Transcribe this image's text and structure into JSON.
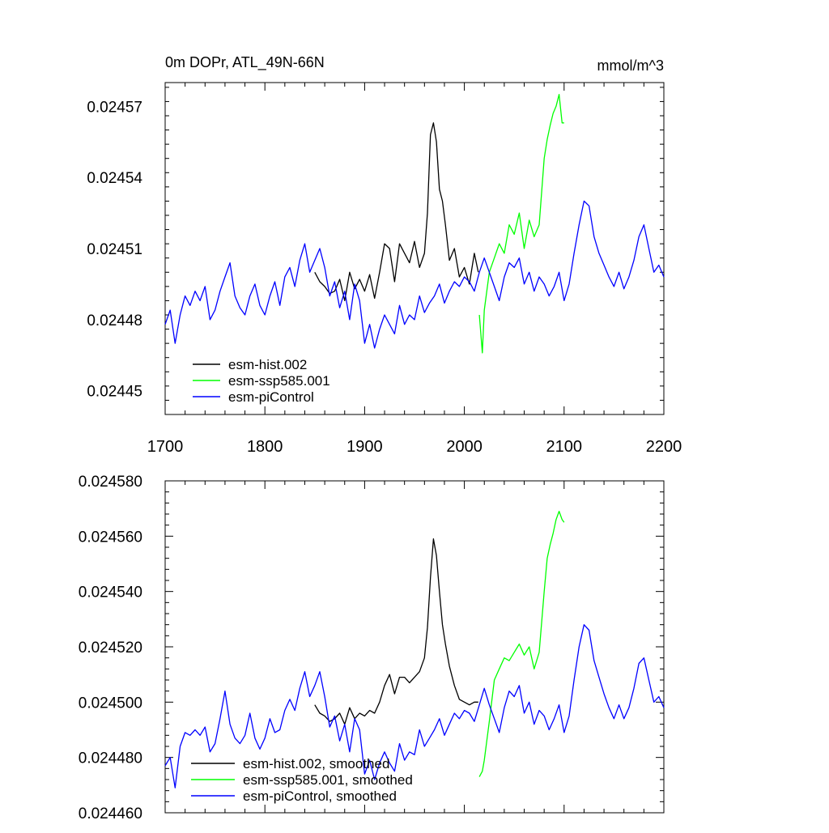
{
  "colors": {
    "hist": "#000000",
    "ssp": "#00ff00",
    "pic": "#0000ff",
    "axis": "#000000",
    "background": "#ffffff"
  },
  "chart_data": [
    {
      "type": "line",
      "title_left": "0m DOPr, ATL_49N-66N",
      "title_right": "mmol/m^3",
      "xlim": [
        1700,
        2200
      ],
      "ylim": [
        0.02444,
        0.02458
      ],
      "xticks": [
        1700,
        1800,
        1900,
        2000,
        2100,
        2200
      ],
      "xtick_labels": [
        "1700",
        "1800",
        "1900",
        "2000",
        "2100",
        "2200"
      ],
      "yticks": [
        0.02445,
        0.02448,
        0.02451,
        0.02454,
        0.02457
      ],
      "ytick_labels": [
        "0.02445",
        "0.02448",
        "0.02451",
        "0.02454",
        "0.02457"
      ],
      "legend": [
        "esm-hist.002",
        "esm-ssp585.001",
        "esm-piControl"
      ],
      "series": [
        {
          "name": "esm-hist.002",
          "color_key": "hist",
          "x": [
            1850,
            1855,
            1860,
            1865,
            1870,
            1875,
            1880,
            1885,
            1890,
            1895,
            1900,
            1905,
            1910,
            1915,
            1920,
            1925,
            1930,
            1935,
            1940,
            1945,
            1950,
            1955,
            1960,
            1963,
            1966,
            1969,
            1972,
            1975,
            1978,
            1981,
            1985,
            1990,
            1995,
            2000,
            2005,
            2010,
            2014
          ],
          "y": [
            0.0245,
            0.024496,
            0.024494,
            0.024491,
            0.024492,
            0.024497,
            0.024488,
            0.0245,
            0.024493,
            0.024497,
            0.024492,
            0.024499,
            0.024489,
            0.0245,
            0.024512,
            0.02451,
            0.024496,
            0.024512,
            0.024508,
            0.024504,
            0.024513,
            0.024502,
            0.024508,
            0.024525,
            0.024558,
            0.024563,
            0.024555,
            0.024535,
            0.02453,
            0.02452,
            0.024505,
            0.02451,
            0.024498,
            0.024502,
            0.024495,
            0.024508,
            0.0245
          ]
        },
        {
          "name": "esm-ssp585.001",
          "color_key": "ssp",
          "x": [
            2015,
            2018,
            2020,
            2025,
            2030,
            2035,
            2040,
            2045,
            2050,
            2055,
            2060,
            2065,
            2070,
            2075,
            2080,
            2083,
            2086,
            2089,
            2092,
            2095,
            2098,
            2100
          ],
          "y": [
            0.024482,
            0.024466,
            0.024484,
            0.0245,
            0.024506,
            0.024512,
            0.024508,
            0.02452,
            0.024516,
            0.024525,
            0.02451,
            0.024522,
            0.024515,
            0.02452,
            0.024548,
            0.024556,
            0.024562,
            0.024567,
            0.02457,
            0.024575,
            0.024563,
            0.024563
          ]
        },
        {
          "name": "esm-piControl",
          "color_key": "pic",
          "x": [
            1700,
            1705,
            1710,
            1715,
            1720,
            1725,
            1730,
            1735,
            1740,
            1745,
            1750,
            1755,
            1760,
            1765,
            1770,
            1775,
            1780,
            1785,
            1790,
            1795,
            1800,
            1805,
            1810,
            1815,
            1820,
            1825,
            1830,
            1835,
            1840,
            1845,
            1850,
            1855,
            1860,
            1865,
            1870,
            1875,
            1880,
            1885,
            1890,
            1895,
            1900,
            1905,
            1910,
            1915,
            1920,
            1925,
            1930,
            1935,
            1940,
            1945,
            1950,
            1955,
            1960,
            1965,
            1970,
            1975,
            1980,
            1985,
            1990,
            1995,
            2000,
            2005,
            2010,
            2015,
            2020,
            2025,
            2030,
            2035,
            2040,
            2045,
            2050,
            2055,
            2060,
            2065,
            2070,
            2075,
            2080,
            2085,
            2090,
            2095,
            2100,
            2105,
            2110,
            2115,
            2120,
            2125,
            2130,
            2135,
            2140,
            2145,
            2150,
            2155,
            2160,
            2165,
            2170,
            2175,
            2180,
            2185,
            2190,
            2195,
            2200
          ],
          "y": [
            0.024478,
            0.024484,
            0.02447,
            0.024482,
            0.02449,
            0.024486,
            0.024492,
            0.024488,
            0.024494,
            0.02448,
            0.024484,
            0.024492,
            0.024498,
            0.024504,
            0.02449,
            0.024485,
            0.024482,
            0.02449,
            0.024495,
            0.024486,
            0.024482,
            0.02449,
            0.024496,
            0.024486,
            0.024498,
            0.024502,
            0.024494,
            0.024505,
            0.024512,
            0.0245,
            0.024505,
            0.02451,
            0.024502,
            0.02449,
            0.024496,
            0.024485,
            0.024492,
            0.02448,
            0.024495,
            0.024488,
            0.02447,
            0.024478,
            0.024468,
            0.024476,
            0.024482,
            0.024478,
            0.024474,
            0.024486,
            0.024478,
            0.024482,
            0.02448,
            0.02449,
            0.024483,
            0.024487,
            0.02449,
            0.024495,
            0.024487,
            0.024492,
            0.024496,
            0.024494,
            0.024498,
            0.024496,
            0.024492,
            0.0245,
            0.024506,
            0.0245,
            0.024494,
            0.024488,
            0.024498,
            0.024504,
            0.024502,
            0.024506,
            0.024495,
            0.0245,
            0.024492,
            0.024498,
            0.024495,
            0.02449,
            0.024494,
            0.0245,
            0.024488,
            0.024495,
            0.024508,
            0.02452,
            0.02453,
            0.024528,
            0.024515,
            0.024508,
            0.024503,
            0.024498,
            0.024494,
            0.0245,
            0.024493,
            0.024498,
            0.024505,
            0.024515,
            0.02452,
            0.02451,
            0.0245,
            0.024503,
            0.024498
          ]
        }
      ]
    },
    {
      "type": "line",
      "xlim": [
        1700,
        2200
      ],
      "ylim": [
        0.02446,
        0.02458
      ],
      "yticks": [
        0.02446,
        0.02448,
        0.0245,
        0.02452,
        0.02454,
        0.02456,
        0.02458
      ],
      "ytick_labels": [
        "0.024460",
        "0.024480",
        "0.024500",
        "0.024520",
        "0.024540",
        "0.024560",
        "0.024580"
      ],
      "legend": [
        "esm-hist.002, smoothed",
        "esm-ssp585.001, smoothed",
        "esm-piControl, smoothed"
      ],
      "series": [
        {
          "name": "esm-hist.002, smoothed",
          "color_key": "hist",
          "x": [
            1850,
            1855,
            1860,
            1865,
            1870,
            1875,
            1880,
            1885,
            1890,
            1895,
            1900,
            1905,
            1910,
            1915,
            1920,
            1925,
            1930,
            1935,
            1940,
            1945,
            1950,
            1955,
            1960,
            1963,
            1966,
            1969,
            1972,
            1975,
            1978,
            1981,
            1985,
            1990,
            1995,
            2000,
            2005,
            2010,
            2014
          ],
          "y": [
            0.024499,
            0.024496,
            0.024495,
            0.024493,
            0.024494,
            0.024496,
            0.024492,
            0.024498,
            0.024494,
            0.024496,
            0.024495,
            0.024497,
            0.024496,
            0.0245,
            0.024506,
            0.02451,
            0.024503,
            0.024509,
            0.024509,
            0.024507,
            0.024509,
            0.024511,
            0.024516,
            0.024527,
            0.024545,
            0.024559,
            0.024553,
            0.02454,
            0.024528,
            0.024521,
            0.024513,
            0.024506,
            0.024501,
            0.0245,
            0.024499,
            0.0245,
            0.0245
          ]
        },
        {
          "name": "esm-ssp585.001, smoothed",
          "color_key": "ssp",
          "x": [
            2015,
            2018,
            2020,
            2025,
            2030,
            2035,
            2040,
            2045,
            2050,
            2055,
            2060,
            2065,
            2070,
            2075,
            2080,
            2083,
            2086,
            2089,
            2092,
            2095,
            2098,
            2100
          ],
          "y": [
            0.024473,
            0.024475,
            0.024479,
            0.024493,
            0.024508,
            0.024512,
            0.024516,
            0.024515,
            0.024518,
            0.024521,
            0.024517,
            0.02452,
            0.024512,
            0.024518,
            0.02454,
            0.024552,
            0.024557,
            0.024561,
            0.024566,
            0.024569,
            0.024566,
            0.024565
          ]
        },
        {
          "name": "esm-piControl, smoothed",
          "color_key": "pic",
          "x": [
            1700,
            1705,
            1710,
            1715,
            1720,
            1725,
            1730,
            1735,
            1740,
            1745,
            1750,
            1755,
            1760,
            1765,
            1770,
            1775,
            1780,
            1785,
            1790,
            1795,
            1800,
            1805,
            1810,
            1815,
            1820,
            1825,
            1830,
            1835,
            1840,
            1845,
            1850,
            1855,
            1860,
            1865,
            1870,
            1875,
            1880,
            1885,
            1890,
            1895,
            1900,
            1905,
            1910,
            1915,
            1920,
            1925,
            1930,
            1935,
            1940,
            1945,
            1950,
            1955,
            1960,
            1965,
            1970,
            1975,
            1980,
            1985,
            1990,
            1995,
            2000,
            2005,
            2010,
            2015,
            2020,
            2025,
            2030,
            2035,
            2040,
            2045,
            2050,
            2055,
            2060,
            2065,
            2070,
            2075,
            2080,
            2085,
            2090,
            2095,
            2100,
            2105,
            2110,
            2115,
            2120,
            2125,
            2130,
            2135,
            2140,
            2145,
            2150,
            2155,
            2160,
            2165,
            2170,
            2175,
            2180,
            2185,
            2190,
            2195,
            2200
          ],
          "y": [
            0.024477,
            0.02448,
            0.024469,
            0.024484,
            0.024489,
            0.024488,
            0.02449,
            0.024488,
            0.024491,
            0.024482,
            0.024485,
            0.024494,
            0.024504,
            0.024492,
            0.024487,
            0.024485,
            0.024488,
            0.024496,
            0.024487,
            0.024483,
            0.024487,
            0.024494,
            0.024489,
            0.02449,
            0.024497,
            0.024501,
            0.024497,
            0.024505,
            0.024511,
            0.024502,
            0.024506,
            0.024511,
            0.024502,
            0.024491,
            0.024495,
            0.024486,
            0.024492,
            0.024482,
            0.024494,
            0.02449,
            0.024474,
            0.024479,
            0.024472,
            0.024478,
            0.024482,
            0.024478,
            0.024475,
            0.024485,
            0.024479,
            0.024482,
            0.024481,
            0.02449,
            0.024484,
            0.024487,
            0.02449,
            0.024494,
            0.024488,
            0.024492,
            0.024496,
            0.024494,
            0.024497,
            0.024496,
            0.024493,
            0.024499,
            0.024505,
            0.024499,
            0.024494,
            0.024489,
            0.024498,
            0.024504,
            0.024502,
            0.024506,
            0.024496,
            0.0245,
            0.024492,
            0.024497,
            0.024495,
            0.02449,
            0.024494,
            0.024499,
            0.024489,
            0.024495,
            0.024508,
            0.02452,
            0.024528,
            0.024526,
            0.024515,
            0.024509,
            0.024503,
            0.024498,
            0.024494,
            0.024499,
            0.024494,
            0.024498,
            0.024505,
            0.024514,
            0.024516,
            0.024508,
            0.0245,
            0.024502,
            0.024498
          ]
        }
      ]
    }
  ]
}
